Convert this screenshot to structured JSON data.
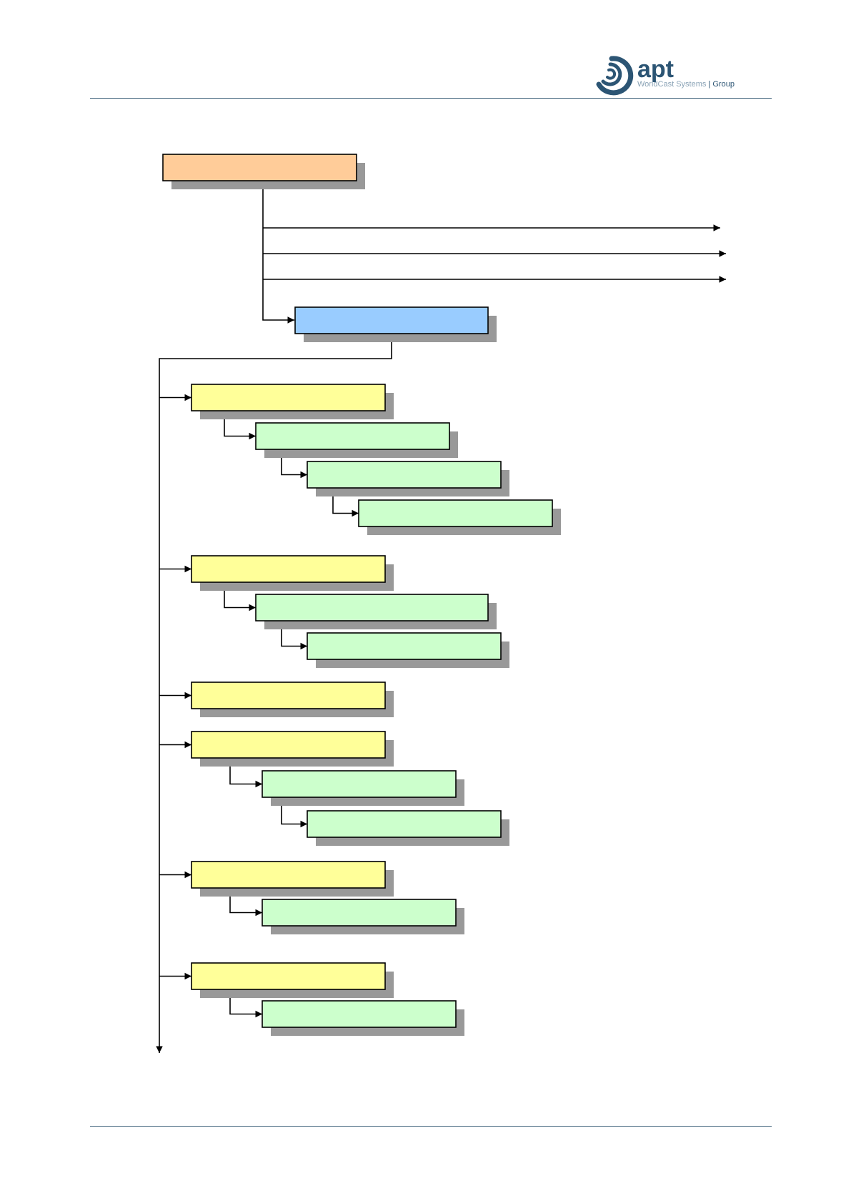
{
  "header": {
    "logo": {
      "word": "apt",
      "tagline_left": "WorldCast Systems",
      "tagline_right": "Group",
      "colors": {
        "mark": "#2c5574",
        "text_light": "#8aa3b6"
      }
    }
  },
  "colors": {
    "root": "#ffcc99",
    "hub": "#99ccff",
    "level1": "#ffff99",
    "level2": "#ccffcc",
    "shadow": "#999999",
    "border": "#000000",
    "rule": "#3d6079"
  },
  "diagram": {
    "root": {
      "label": ""
    },
    "outputs": [
      {
        "label": ""
      },
      {
        "label": ""
      },
      {
        "label": ""
      }
    ],
    "hub": {
      "label": ""
    },
    "groups": [
      {
        "label": "",
        "children": [
          {
            "label": "",
            "children": [
              {
                "label": "",
                "children": [
                  {
                    "label": ""
                  }
                ]
              }
            ]
          }
        ]
      },
      {
        "label": "",
        "children": [
          {
            "label": "",
            "children": [
              {
                "label": ""
              }
            ]
          }
        ]
      },
      {
        "label": "",
        "children": []
      },
      {
        "label": "",
        "children": [
          {
            "label": "",
            "children": [
              {
                "label": ""
              }
            ]
          }
        ]
      },
      {
        "label": "",
        "children": [
          {
            "label": ""
          }
        ]
      },
      {
        "label": "",
        "children": [
          {
            "label": ""
          }
        ]
      }
    ]
  }
}
